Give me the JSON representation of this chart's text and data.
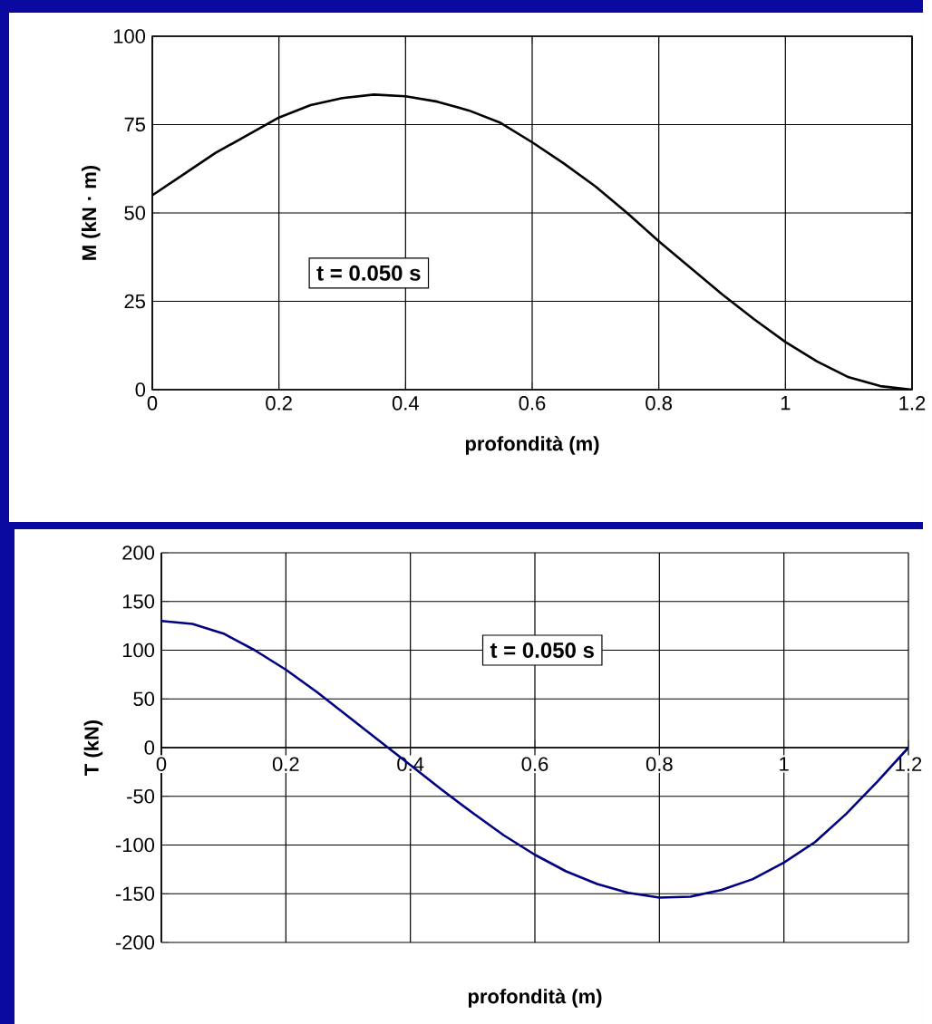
{
  "chart_data": [
    {
      "type": "line",
      "xlabel": "profondità (m)",
      "ylabel": "M (kN · m)",
      "annotations": [
        "t = 0.050 s"
      ],
      "color": "#000000",
      "grid": true,
      "xlim": [
        0,
        1.2
      ],
      "ylim": [
        0,
        100
      ],
      "xticks": [
        0,
        0.2,
        0.4,
        0.6,
        0.8,
        1,
        1.2
      ],
      "yticks": [
        0,
        25,
        50,
        75,
        100
      ],
      "x": [
        0,
        0.05,
        0.1,
        0.15,
        0.2,
        0.25,
        0.3,
        0.35,
        0.4,
        0.45,
        0.5,
        0.55,
        0.6,
        0.65,
        0.7,
        0.75,
        0.8,
        0.85,
        0.9,
        0.95,
        1.0,
        1.05,
        1.1,
        1.15,
        1.2
      ],
      "values": [
        55,
        61,
        67,
        72,
        77,
        80.5,
        82.5,
        83.5,
        83,
        81.5,
        79,
        75.5,
        70,
        64,
        57.5,
        50,
        42,
        34.5,
        27,
        20,
        13.5,
        8,
        3.5,
        1,
        0
      ]
    },
    {
      "type": "line",
      "xlabel": "profondità (m)",
      "ylabel": "T (kN)",
      "annotations": [
        "t = 0.050 s"
      ],
      "color": "#000080",
      "grid": true,
      "xlim": [
        0,
        1.2
      ],
      "ylim": [
        -200,
        200
      ],
      "xticks": [
        0,
        0.2,
        0.4,
        0.6,
        0.8,
        1,
        1.2
      ],
      "yticks": [
        -200,
        -150,
        -100,
        -50,
        0,
        50,
        100,
        150,
        200
      ],
      "x": [
        0,
        0.05,
        0.1,
        0.15,
        0.2,
        0.25,
        0.3,
        0.35,
        0.4,
        0.45,
        0.5,
        0.55,
        0.6,
        0.65,
        0.7,
        0.75,
        0.8,
        0.85,
        0.9,
        0.95,
        1.0,
        1.05,
        1.1,
        1.15,
        1.2
      ],
      "values": [
        130,
        127,
        117,
        100,
        80,
        57,
        32,
        7,
        -18,
        -43,
        -67,
        -90,
        -110,
        -127,
        -140,
        -149,
        -154,
        -153,
        -146,
        -135,
        -118,
        -97,
        -68,
        -35,
        0
      ]
    }
  ]
}
